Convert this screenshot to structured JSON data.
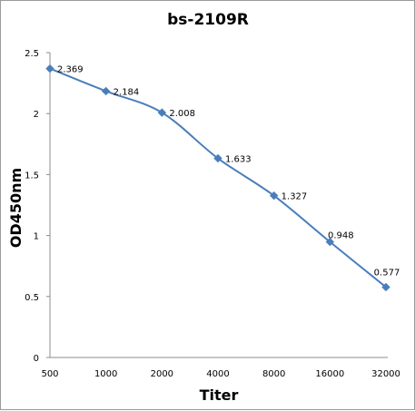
{
  "chart_data": {
    "type": "line",
    "title": "bs-2109R",
    "xlabel": "Titer",
    "ylabel": "OD450nm",
    "categories": [
      "500",
      "1000",
      "2000",
      "4000",
      "8000",
      "16000",
      "32000"
    ],
    "values": [
      2.369,
      2.184,
      2.008,
      1.633,
      1.327,
      0.948,
      0.577
    ],
    "data_labels": [
      "2.369",
      "2.184",
      "2.008",
      "1.633",
      "1.327",
      "0.948",
      "0.577"
    ],
    "yticks": [
      "0",
      "0.5",
      "1",
      "1.5",
      "2",
      "2.5"
    ],
    "ylim": [
      0,
      2.5
    ],
    "grid": false,
    "legend": "none",
    "series_color": "#4a7ebb"
  }
}
